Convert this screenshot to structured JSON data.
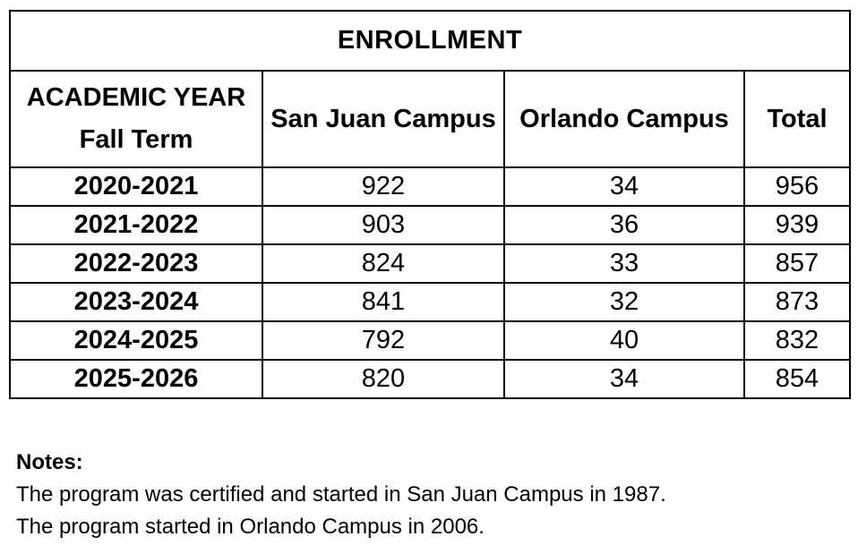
{
  "enrollment_table": {
    "title": "ENROLLMENT",
    "header": {
      "year_line1": "ACADEMIC YEAR",
      "year_line2": "Fall Term",
      "san_juan": "San Juan Campus",
      "orlando": "Orlando Campus",
      "total": "Total"
    },
    "rows": [
      {
        "year": "2020-2021",
        "san_juan": "922",
        "orlando": "34",
        "total": "956"
      },
      {
        "year": "2021-2022",
        "san_juan": "903",
        "orlando": "36",
        "total": "939"
      },
      {
        "year": "2022-2023",
        "san_juan": "824",
        "orlando": "33",
        "total": "857"
      },
      {
        "year": "2023-2024",
        "san_juan": "841",
        "orlando": "32",
        "total": "873"
      },
      {
        "year": "2024-2025",
        "san_juan": "792",
        "orlando": "40",
        "total": "832"
      },
      {
        "year": "2025-2026",
        "san_juan": "820",
        "orlando": "34",
        "total": "854"
      }
    ]
  },
  "notes": {
    "heading": "Notes:",
    "lines": [
      "The program was certified and started in San Juan Campus in 1987.",
      "The program started in Orlando Campus in 2006."
    ]
  },
  "chart_data": {
    "type": "table",
    "title": "ENROLLMENT",
    "columns": [
      "ACADEMIC YEAR Fall Term",
      "San Juan Campus",
      "Orlando Campus",
      "Total"
    ],
    "rows": [
      [
        "2020-2021",
        922,
        34,
        956
      ],
      [
        "2021-2022",
        903,
        36,
        939
      ],
      [
        "2022-2023",
        824,
        33,
        857
      ],
      [
        "2023-2024",
        841,
        32,
        873
      ],
      [
        "2024-2025",
        792,
        40,
        832
      ],
      [
        "2025-2026",
        820,
        34,
        854
      ]
    ]
  },
  "colors": {
    "text": "#000000",
    "background": "#ffffff",
    "border": "#000000"
  }
}
